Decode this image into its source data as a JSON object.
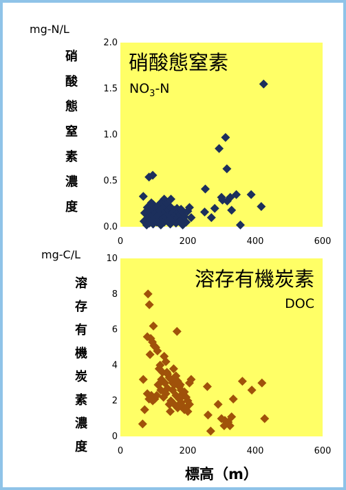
{
  "colors": {
    "border": "#8fc3e8",
    "plot_bg": "#ffff66",
    "no3_marker": "#1c2f5c",
    "doc_marker": "#a0520a"
  },
  "chart_data": [
    {
      "type": "scatter",
      "id": "no3",
      "unit_label": "mg-N/L",
      "ylabel": "硝酸態窒素濃度",
      "title": "硝酸態窒素",
      "subtitle": "NO3-N",
      "subtitle_main": "NO",
      "subtitle_sub": "3",
      "subtitle_rest": "-N",
      "xlim": [
        0,
        600
      ],
      "ylim": [
        0,
        2.0
      ],
      "xticks": [
        "0",
        "200",
        "400",
        "600"
      ],
      "yticks": [
        "0.0",
        "0.5",
        "1.0",
        "1.5",
        "2.0"
      ],
      "marker_color": "#1c2f5c",
      "points": [
        [
          425,
          1.55
        ],
        [
          312,
          0.97
        ],
        [
          293,
          0.85
        ],
        [
          316,
          0.63
        ],
        [
          96,
          0.56
        ],
        [
          85,
          0.54
        ],
        [
          252,
          0.41
        ],
        [
          388,
          0.35
        ],
        [
          344,
          0.35
        ],
        [
          300,
          0.32
        ],
        [
          326,
          0.32
        ],
        [
          303,
          0.29
        ],
        [
          317,
          0.28
        ],
        [
          68,
          0.33
        ],
        [
          130,
          0.3
        ],
        [
          150,
          0.3
        ],
        [
          120,
          0.26
        ],
        [
          98,
          0.24
        ],
        [
          418,
          0.22
        ],
        [
          280,
          0.2
        ],
        [
          250,
          0.16
        ],
        [
          330,
          0.18
        ],
        [
          270,
          0.1
        ],
        [
          356,
          0.02
        ],
        [
          70,
          0.06
        ],
        [
          72,
          0.15
        ],
        [
          78,
          0.02
        ],
        [
          80,
          0.21
        ],
        [
          82,
          0.1
        ],
        [
          86,
          0.04
        ],
        [
          88,
          0.17
        ],
        [
          90,
          0.08
        ],
        [
          92,
          0.26
        ],
        [
          95,
          0.13
        ],
        [
          97,
          0.03
        ],
        [
          100,
          0.19
        ],
        [
          102,
          0.09
        ],
        [
          105,
          0.15
        ],
        [
          108,
          0.05
        ],
        [
          110,
          0.22
        ],
        [
          112,
          0.12
        ],
        [
          115,
          0.07
        ],
        [
          118,
          0.18
        ],
        [
          120,
          0.02
        ],
        [
          122,
          0.14
        ],
        [
          125,
          0.09
        ],
        [
          128,
          0.2
        ],
        [
          130,
          0.05
        ],
        [
          132,
          0.16
        ],
        [
          135,
          0.11
        ],
        [
          138,
          0.25
        ],
        [
          140,
          0.06
        ],
        [
          143,
          0.18
        ],
        [
          145,
          0.13
        ],
        [
          148,
          0.03
        ],
        [
          150,
          0.21
        ],
        [
          152,
          0.09
        ],
        [
          155,
          0.15
        ],
        [
          158,
          0.07
        ],
        [
          160,
          0.18
        ],
        [
          162,
          0.12
        ],
        [
          165,
          0.04
        ],
        [
          168,
          0.2
        ],
        [
          170,
          0.1
        ],
        [
          173,
          0.16
        ],
        [
          175,
          0.06
        ],
        [
          178,
          0.13
        ],
        [
          180,
          0.19
        ],
        [
          183,
          0.08
        ],
        [
          186,
          0.15
        ],
        [
          190,
          0.11
        ],
        [
          195,
          0.05
        ],
        [
          200,
          0.17
        ],
        [
          205,
          0.21
        ],
        [
          210,
          0.1
        ],
        [
          185,
          0.02
        ]
      ]
    },
    {
      "type": "scatter",
      "id": "doc",
      "unit_label": "mg-C/L",
      "ylabel": "溶存有機炭素濃度",
      "title": "溶存有機炭素",
      "subtitle": "DOC",
      "xlabel": "標高（m）",
      "xlim": [
        0,
        600
      ],
      "ylim": [
        0,
        10
      ],
      "xticks": [
        "0",
        "200",
        "400",
        "600"
      ],
      "yticks": [
        "0",
        "2",
        "4",
        "6",
        "8",
        "10"
      ],
      "marker_color": "#a0520a",
      "points": [
        [
          82,
          8.0
        ],
        [
          86,
          7.4
        ],
        [
          98,
          6.2
        ],
        [
          168,
          5.9
        ],
        [
          80,
          5.6
        ],
        [
          90,
          5.5
        ],
        [
          95,
          5.3
        ],
        [
          100,
          5.1
        ],
        [
          105,
          5.0
        ],
        [
          110,
          4.8
        ],
        [
          88,
          4.6
        ],
        [
          130,
          4.5
        ],
        [
          135,
          4.2
        ],
        [
          118,
          4.0
        ],
        [
          115,
          3.8
        ],
        [
          125,
          3.6
        ],
        [
          140,
          3.5
        ],
        [
          145,
          3.3
        ],
        [
          150,
          3.2
        ],
        [
          155,
          3.0
        ],
        [
          160,
          2.9
        ],
        [
          165,
          3.4
        ],
        [
          170,
          3.1
        ],
        [
          175,
          2.8
        ],
        [
          180,
          2.6
        ],
        [
          185,
          2.4
        ],
        [
          190,
          2.5
        ],
        [
          195,
          2.2
        ],
        [
          200,
          2.0
        ],
        [
          205,
          1.8
        ],
        [
          140,
          2.7
        ],
        [
          135,
          2.4
        ],
        [
          128,
          2.2
        ],
        [
          120,
          2.6
        ],
        [
          112,
          2.9
        ],
        [
          108,
          2.3
        ],
        [
          102,
          2.1
        ],
        [
          96,
          2.0
        ],
        [
          92,
          2.3
        ],
        [
          85,
          2.1
        ],
        [
          80,
          2.4
        ],
        [
          150,
          2.0
        ],
        [
          160,
          1.8
        ],
        [
          170,
          1.6
        ],
        [
          180,
          1.9
        ],
        [
          190,
          1.5
        ],
        [
          148,
          1.4
        ],
        [
          205,
          3.0
        ],
        [
          155,
          2.6
        ],
        [
          165,
          2.3
        ],
        [
          175,
          2.1
        ],
        [
          185,
          1.7
        ],
        [
          145,
          1.8
        ],
        [
          132,
          3.0
        ],
        [
          122,
          3.2
        ],
        [
          138,
          3.6
        ],
        [
          158,
          3.8
        ],
        [
          178,
          2.9
        ],
        [
          195,
          1.6
        ],
        [
          200,
          1.4
        ],
        [
          210,
          3.2
        ],
        [
          68,
          3.2
        ],
        [
          72,
          1.5
        ],
        [
          66,
          0.7
        ],
        [
          258,
          2.8
        ],
        [
          290,
          1.8
        ],
        [
          300,
          1.0
        ],
        [
          260,
          1.2
        ],
        [
          268,
          0.3
        ],
        [
          310,
          0.9
        ],
        [
          325,
          0.6
        ],
        [
          330,
          1.1
        ],
        [
          308,
          0.6
        ],
        [
          320,
          0.8
        ],
        [
          335,
          2.1
        ],
        [
          362,
          3.1
        ],
        [
          390,
          2.6
        ],
        [
          420,
          3.0
        ],
        [
          428,
          1.0
        ]
      ]
    }
  ]
}
